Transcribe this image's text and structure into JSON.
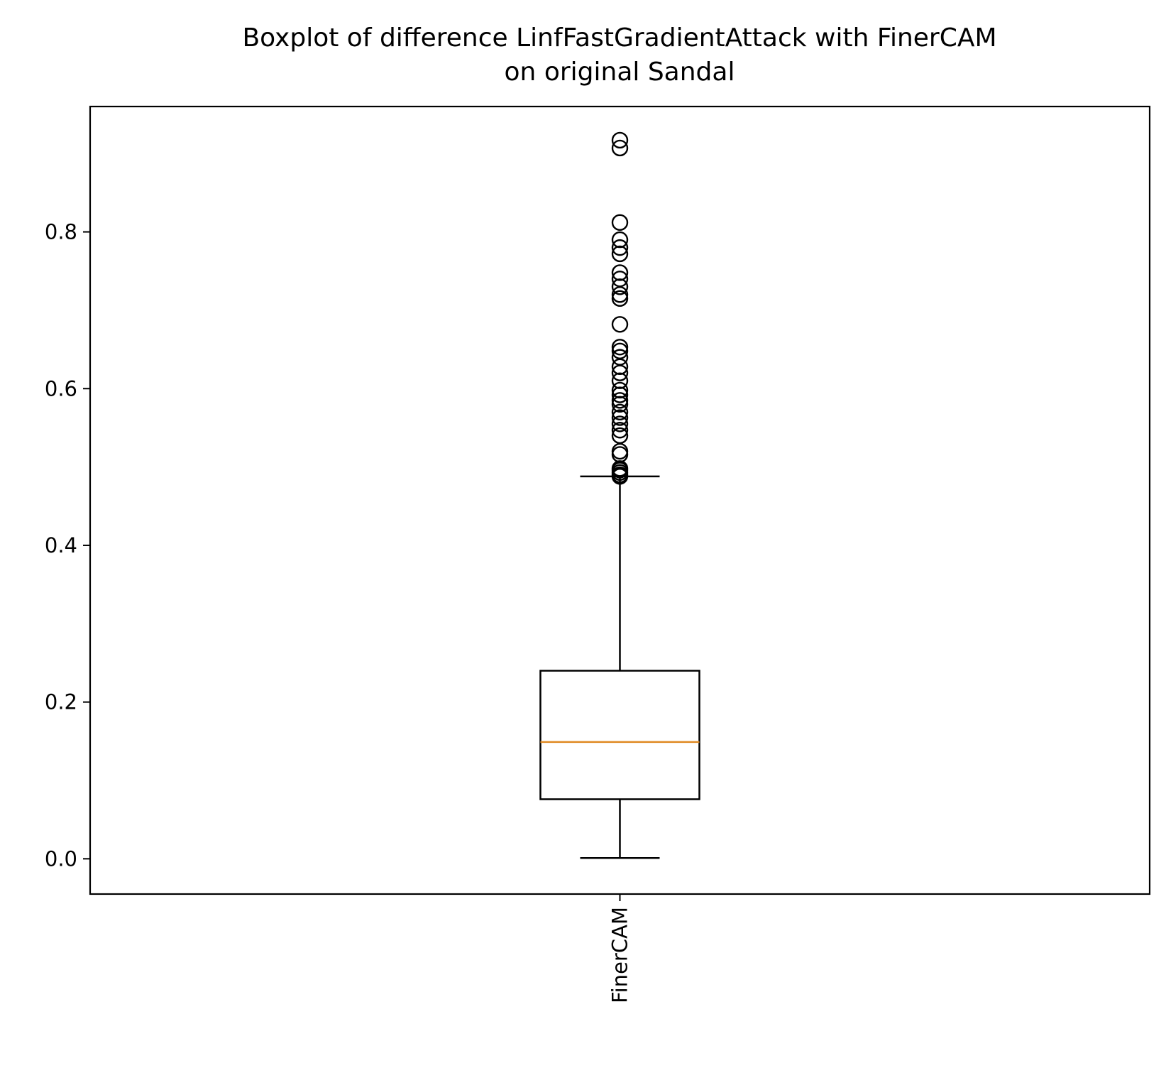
{
  "chart_data": {
    "type": "box",
    "title": [
      "Boxplot of difference LinfFastGradientAttack with FinerCAM",
      "on original Sandal"
    ],
    "xlabel": "",
    "ylabel": "",
    "categories": [
      "FinerCAM"
    ],
    "ylim": [
      -0.045,
      0.96
    ],
    "yticks": [
      0.0,
      0.2,
      0.4,
      0.6,
      0.8
    ],
    "ytick_labels": [
      "0.0",
      "0.2",
      "0.4",
      "0.6",
      "0.8"
    ],
    "grid": false,
    "series": [
      {
        "whisker_low": 0.001,
        "q1": 0.076,
        "median": 0.149,
        "q3": 0.24,
        "whisker_high": 0.488,
        "outliers": [
          0.488,
          0.49,
          0.493,
          0.496,
          0.498,
          0.516,
          0.52,
          0.54,
          0.547,
          0.555,
          0.563,
          0.57,
          0.58,
          0.585,
          0.592,
          0.598,
          0.61,
          0.62,
          0.628,
          0.64,
          0.648,
          0.653,
          0.682,
          0.715,
          0.72,
          0.73,
          0.74,
          0.748,
          0.772,
          0.78,
          0.79,
          0.812,
          0.907,
          0.917
        ]
      }
    ],
    "colors": {
      "box": "#000000",
      "median": "#e08a23",
      "outlier": "#000000"
    }
  }
}
